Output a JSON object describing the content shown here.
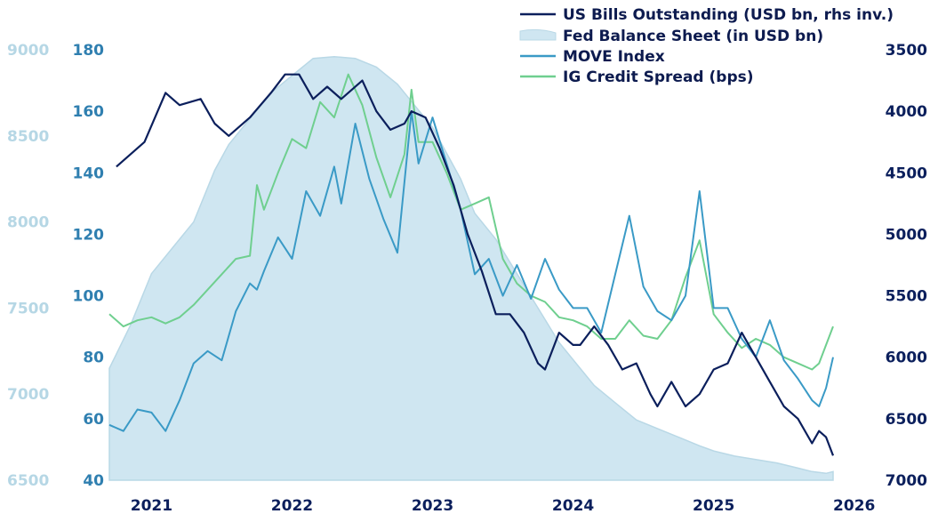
{
  "chart_data": {
    "type": "line",
    "title": "",
    "colors": {
      "bills": "#0b1f5c",
      "fed": "#cfe6f1",
      "fed_stroke": "#b9d8e6",
      "move": "#3a9ac6",
      "ig": "#6fcf8f",
      "tick_fed": "#b6d7e5",
      "tick_left": "#2f7fb0",
      "tick_right": "#0b1f5c"
    },
    "x_axis": {
      "range": [
        2020.7,
        2025.85
      ],
      "ticks": [
        2021,
        2022,
        2023,
        2024,
        2025,
        2026
      ],
      "tick_labels": [
        "2021",
        "2022",
        "2023",
        "2024",
        "2025",
        "2026"
      ]
    },
    "y_axis_left_fed": {
      "range": [
        6500,
        9000
      ],
      "ticks": [
        6500,
        7000,
        7500,
        8000,
        8500,
        9000
      ],
      "tick_labels": [
        "6500",
        "7000",
        "7500",
        "8000",
        "8500",
        "9000"
      ]
    },
    "y_axis_left_index": {
      "range": [
        40,
        180
      ],
      "ticks": [
        40,
        60,
        80,
        100,
        120,
        140,
        160,
        180
      ],
      "tick_labels": [
        "40",
        "60",
        "80",
        "100",
        "120",
        "140",
        "160",
        "180"
      ]
    },
    "y_axis_right_bills": {
      "inverted": true,
      "range": [
        3500,
        7000
      ],
      "ticks": [
        3500,
        4000,
        4500,
        5000,
        5500,
        6000,
        6500,
        7000
      ],
      "tick_labels": [
        "3500",
        "4000",
        "4500",
        "5000",
        "5500",
        "6000",
        "6500",
        "7000"
      ]
    },
    "legend_position": "top-right",
    "series": [
      {
        "name": "US Bills Outstanding (USD bn, rhs inv.)",
        "axis": "right",
        "style": "line",
        "points": [
          [
            2020.75,
            4450
          ],
          [
            2020.95,
            4250
          ],
          [
            2021.1,
            3850
          ],
          [
            2021.2,
            3950
          ],
          [
            2021.35,
            3900
          ],
          [
            2021.45,
            4100
          ],
          [
            2021.55,
            4200
          ],
          [
            2021.7,
            4050
          ],
          [
            2021.85,
            3850
          ],
          [
            2021.95,
            3700
          ],
          [
            2022.05,
            3700
          ],
          [
            2022.15,
            3900
          ],
          [
            2022.25,
            3800
          ],
          [
            2022.35,
            3900
          ],
          [
            2022.5,
            3750
          ],
          [
            2022.6,
            4000
          ],
          [
            2022.7,
            4150
          ],
          [
            2022.8,
            4100
          ],
          [
            2022.85,
            4000
          ],
          [
            2022.95,
            4050
          ],
          [
            2023.05,
            4300
          ],
          [
            2023.15,
            4600
          ],
          [
            2023.25,
            5000
          ],
          [
            2023.35,
            5300
          ],
          [
            2023.45,
            5650
          ],
          [
            2023.55,
            5650
          ],
          [
            2023.65,
            5800
          ],
          [
            2023.75,
            6050
          ],
          [
            2023.8,
            6100
          ],
          [
            2023.9,
            5800
          ],
          [
            2024.0,
            5900
          ],
          [
            2024.05,
            5900
          ],
          [
            2024.15,
            5750
          ],
          [
            2024.25,
            5900
          ],
          [
            2024.35,
            6100
          ],
          [
            2024.45,
            6050
          ],
          [
            2024.55,
            6300
          ],
          [
            2024.6,
            6400
          ],
          [
            2024.7,
            6200
          ],
          [
            2024.8,
            6400
          ],
          [
            2024.9,
            6300
          ],
          [
            2025.0,
            6100
          ],
          [
            2025.1,
            6050
          ],
          [
            2025.2,
            5800
          ],
          [
            2025.3,
            6000
          ],
          [
            2025.4,
            6200
          ],
          [
            2025.5,
            6400
          ],
          [
            2025.6,
            6500
          ],
          [
            2025.7,
            6700
          ],
          [
            2025.75,
            6600
          ],
          [
            2025.8,
            6650
          ],
          [
            2025.85,
            6800
          ]
        ]
      },
      {
        "name": "Fed Balance Sheet (in USD bn)",
        "axis": "left",
        "style": "area",
        "points": [
          [
            2020.7,
            7150
          ],
          [
            2020.85,
            7400
          ],
          [
            2021.0,
            7700
          ],
          [
            2021.15,
            7850
          ],
          [
            2021.3,
            8000
          ],
          [
            2021.45,
            8300
          ],
          [
            2021.55,
            8450
          ],
          [
            2021.7,
            8600
          ],
          [
            2021.85,
            8750
          ],
          [
            2022.0,
            8850
          ],
          [
            2022.15,
            8950
          ],
          [
            2022.3,
            8960
          ],
          [
            2022.45,
            8950
          ],
          [
            2022.6,
            8900
          ],
          [
            2022.75,
            8800
          ],
          [
            2022.9,
            8650
          ],
          [
            2023.0,
            8550
          ],
          [
            2023.1,
            8400
          ],
          [
            2023.2,
            8250
          ],
          [
            2023.3,
            8050
          ],
          [
            2023.45,
            7900
          ],
          [
            2023.6,
            7700
          ],
          [
            2023.75,
            7500
          ],
          [
            2023.9,
            7300
          ],
          [
            2024.0,
            7200
          ],
          [
            2024.15,
            7050
          ],
          [
            2024.3,
            6950
          ],
          [
            2024.45,
            6850
          ],
          [
            2024.6,
            6800
          ],
          [
            2024.75,
            6750
          ],
          [
            2024.9,
            6700
          ],
          [
            2025.0,
            6670
          ],
          [
            2025.15,
            6640
          ],
          [
            2025.3,
            6620
          ],
          [
            2025.45,
            6600
          ],
          [
            2025.6,
            6570
          ],
          [
            2025.7,
            6550
          ],
          [
            2025.8,
            6540
          ],
          [
            2025.85,
            6550
          ]
        ]
      },
      {
        "name": "MOVE Index",
        "axis": "left",
        "style": "line",
        "points": [
          [
            2020.7,
            58
          ],
          [
            2020.8,
            56
          ],
          [
            2020.9,
            63
          ],
          [
            2021.0,
            62
          ],
          [
            2021.1,
            56
          ],
          [
            2021.2,
            66
          ],
          [
            2021.3,
            78
          ],
          [
            2021.4,
            82
          ],
          [
            2021.5,
            79
          ],
          [
            2021.6,
            95
          ],
          [
            2021.7,
            104
          ],
          [
            2021.75,
            102
          ],
          [
            2021.8,
            108
          ],
          [
            2021.9,
            119
          ],
          [
            2022.0,
            112
          ],
          [
            2022.1,
            134
          ],
          [
            2022.2,
            126
          ],
          [
            2022.3,
            142
          ],
          [
            2022.35,
            130
          ],
          [
            2022.45,
            156
          ],
          [
            2022.55,
            138
          ],
          [
            2022.65,
            125
          ],
          [
            2022.75,
            114
          ],
          [
            2022.85,
            160
          ],
          [
            2022.9,
            143
          ],
          [
            2023.0,
            158
          ],
          [
            2023.1,
            143
          ],
          [
            2023.2,
            128
          ],
          [
            2023.3,
            107
          ],
          [
            2023.4,
            112
          ],
          [
            2023.5,
            100
          ],
          [
            2023.6,
            110
          ],
          [
            2023.7,
            99
          ],
          [
            2023.8,
            112
          ],
          [
            2023.9,
            102
          ],
          [
            2024.0,
            96
          ],
          [
            2024.1,
            96
          ],
          [
            2024.2,
            88
          ],
          [
            2024.3,
            107
          ],
          [
            2024.4,
            126
          ],
          [
            2024.5,
            103
          ],
          [
            2024.6,
            95
          ],
          [
            2024.7,
            92
          ],
          [
            2024.8,
            100
          ],
          [
            2024.9,
            134
          ],
          [
            2025.0,
            96
          ],
          [
            2025.1,
            96
          ],
          [
            2025.2,
            86
          ],
          [
            2025.3,
            80
          ],
          [
            2025.4,
            92
          ],
          [
            2025.5,
            79
          ],
          [
            2025.6,
            73
          ],
          [
            2025.7,
            66
          ],
          [
            2025.75,
            64
          ],
          [
            2025.8,
            70
          ],
          [
            2025.85,
            80
          ]
        ]
      },
      {
        "name": "IG Credit Spread (bps)",
        "axis": "left",
        "style": "line",
        "points": [
          [
            2020.7,
            94
          ],
          [
            2020.8,
            90
          ],
          [
            2020.9,
            92
          ],
          [
            2021.0,
            93
          ],
          [
            2021.1,
            91
          ],
          [
            2021.2,
            93
          ],
          [
            2021.3,
            97
          ],
          [
            2021.4,
            102
          ],
          [
            2021.5,
            107
          ],
          [
            2021.6,
            112
          ],
          [
            2021.7,
            113
          ],
          [
            2021.75,
            136
          ],
          [
            2021.8,
            128
          ],
          [
            2021.9,
            140
          ],
          [
            2022.0,
            151
          ],
          [
            2022.1,
            148
          ],
          [
            2022.2,
            163
          ],
          [
            2022.3,
            158
          ],
          [
            2022.4,
            172
          ],
          [
            2022.5,
            162
          ],
          [
            2022.6,
            145
          ],
          [
            2022.7,
            132
          ],
          [
            2022.8,
            146
          ],
          [
            2022.85,
            167
          ],
          [
            2022.9,
            150
          ],
          [
            2023.0,
            150
          ],
          [
            2023.1,
            140
          ],
          [
            2023.2,
            128
          ],
          [
            2023.3,
            130
          ],
          [
            2023.4,
            132
          ],
          [
            2023.5,
            112
          ],
          [
            2023.6,
            104
          ],
          [
            2023.7,
            100
          ],
          [
            2023.8,
            98
          ],
          [
            2023.9,
            93
          ],
          [
            2024.0,
            92
          ],
          [
            2024.1,
            90
          ],
          [
            2024.2,
            86
          ],
          [
            2024.3,
            86
          ],
          [
            2024.4,
            92
          ],
          [
            2024.5,
            87
          ],
          [
            2024.6,
            86
          ],
          [
            2024.7,
            92
          ],
          [
            2024.8,
            106
          ],
          [
            2024.9,
            118
          ],
          [
            2025.0,
            94
          ],
          [
            2025.1,
            88
          ],
          [
            2025.2,
            83
          ],
          [
            2025.3,
            86
          ],
          [
            2025.4,
            84
          ],
          [
            2025.5,
            80
          ],
          [
            2025.6,
            78
          ],
          [
            2025.7,
            76
          ],
          [
            2025.75,
            78
          ],
          [
            2025.8,
            84
          ],
          [
            2025.85,
            90
          ]
        ]
      }
    ]
  }
}
